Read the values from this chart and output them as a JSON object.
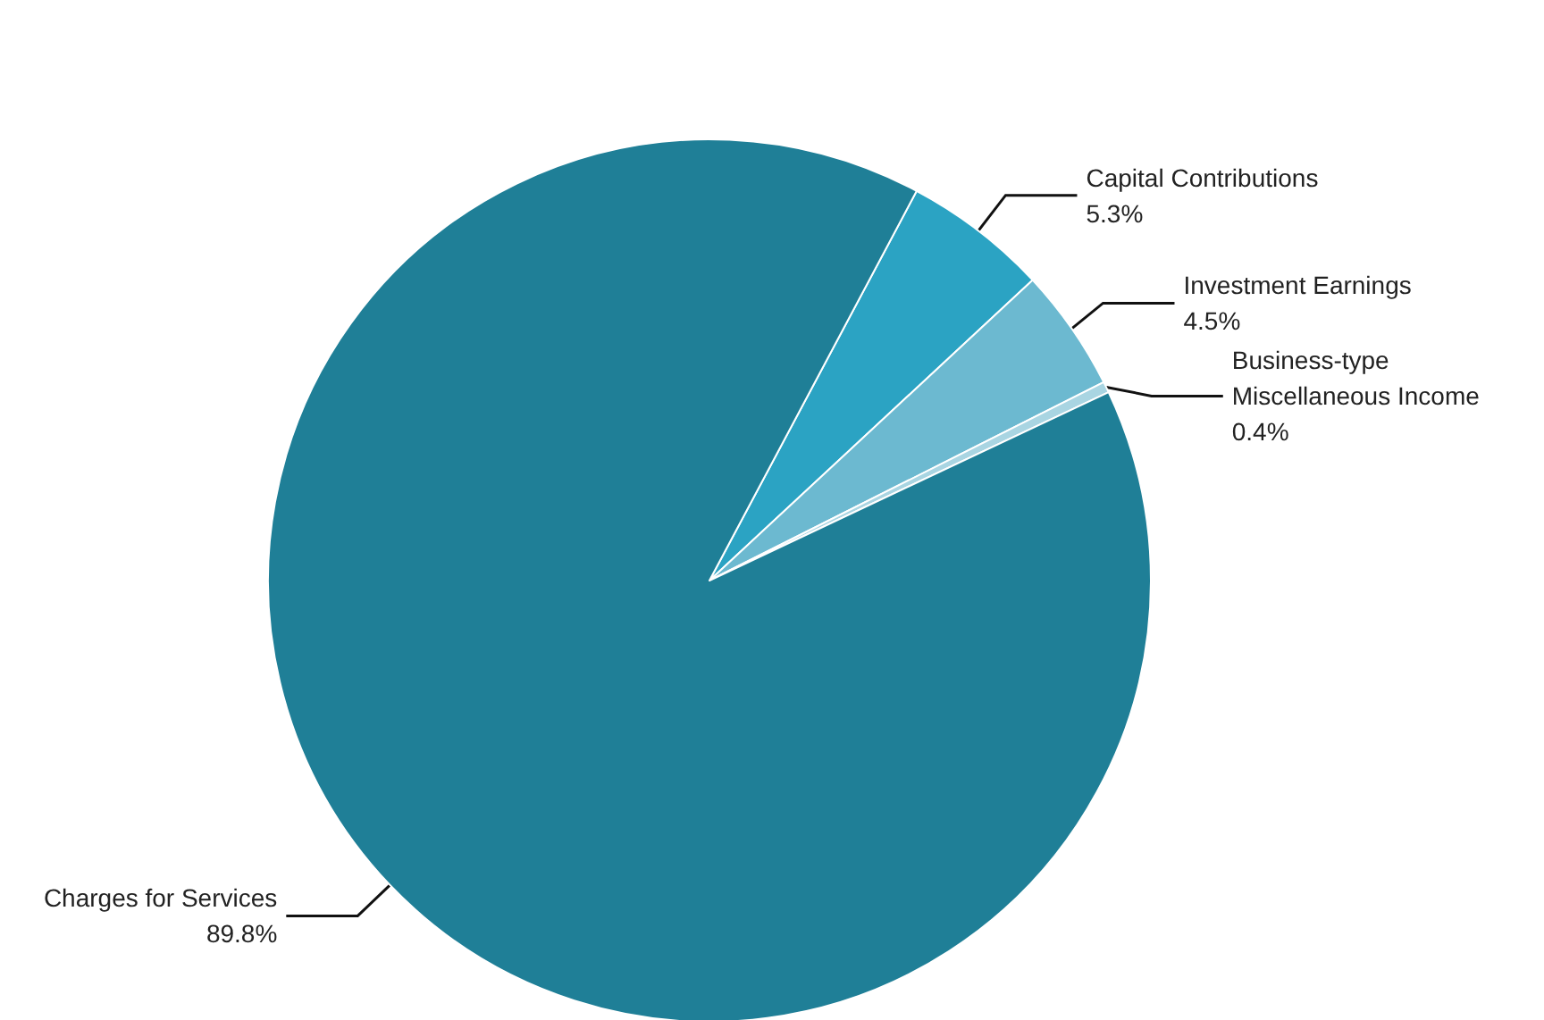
{
  "chart_data": {
    "type": "pie",
    "categories": [
      "Capital Contributions",
      "Investment Earnings",
      "Business-type Miscellaneous Income",
      "Charges for Services"
    ],
    "values": [
      5.3,
      4.5,
      0.4,
      89.8
    ],
    "colors": [
      "#2ba3c3",
      "#6cb9d0",
      "#a9d5e2",
      "#1f7f97"
    ],
    "value_labels": [
      "5.3%",
      "4.5%",
      "0.4%",
      "89.8%"
    ]
  }
}
